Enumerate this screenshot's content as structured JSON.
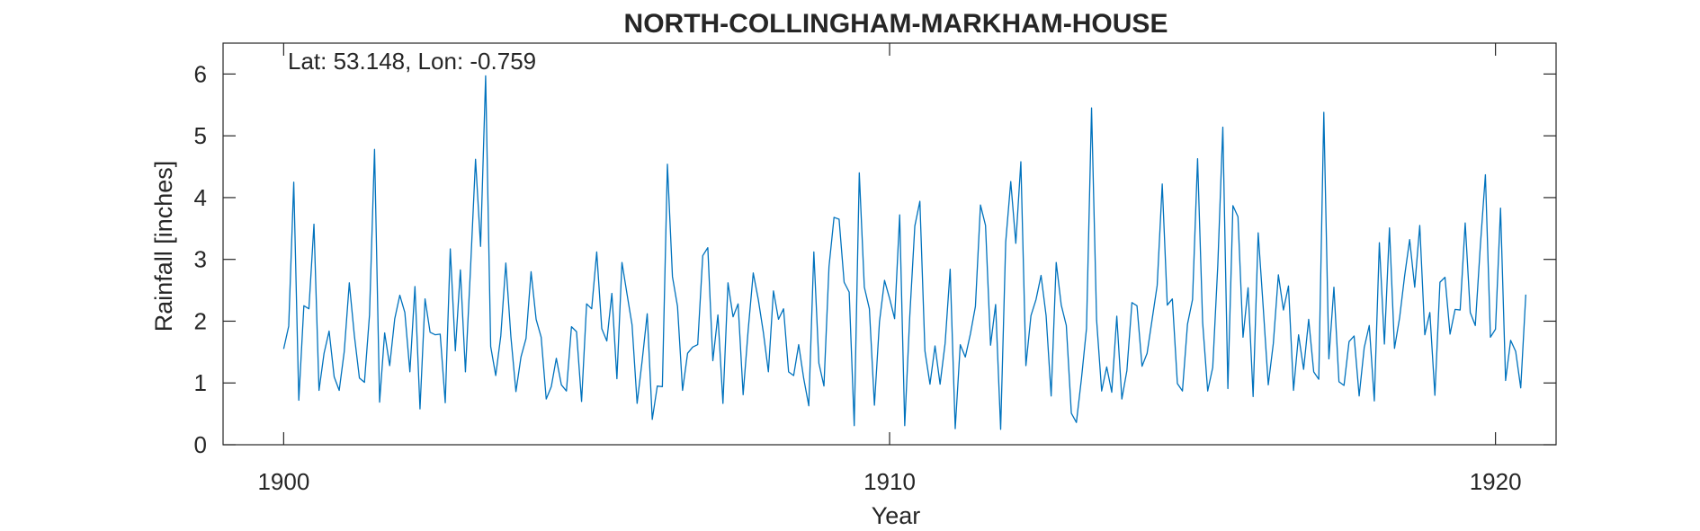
{
  "chart_data": {
    "type": "line",
    "title": "NORTH-COLLINGHAM-MARKHAM-HOUSE",
    "xlabel": "Year",
    "ylabel": "Rainfall [inches]",
    "annotation": "Lat: 53.148, Lon: -0.759",
    "xlim": [
      1899.0,
      1921.0
    ],
    "ylim": [
      0,
      6.5
    ],
    "xticks": [
      1900,
      1910,
      1920
    ],
    "yticks": [
      0,
      1,
      2,
      3,
      4,
      5,
      6
    ],
    "grid": false,
    "series": [
      {
        "color": "#0072BD",
        "start_year": 1900,
        "step_months": 1,
        "values": [
          1.55,
          1.92,
          4.25,
          0.72,
          2.25,
          2.2,
          3.57,
          0.88,
          1.48,
          1.84,
          1.1,
          0.88,
          1.51,
          2.62,
          1.77,
          1.08,
          1.01,
          2.1,
          4.78,
          0.69,
          1.81,
          1.28,
          2.04,
          2.42,
          2.14,
          1.18,
          2.56,
          0.58,
          2.36,
          1.82,
          1.78,
          1.79,
          0.68,
          3.17,
          1.52,
          2.83,
          1.18,
          2.84,
          4.62,
          3.21,
          5.97,
          1.59,
          1.12,
          1.76,
          2.94,
          1.75,
          0.86,
          1.42,
          1.72,
          2.8,
          2.03,
          1.74,
          0.74,
          0.94,
          1.4,
          0.97,
          0.87,
          1.91,
          1.83,
          0.7,
          2.28,
          2.2,
          3.12,
          1.88,
          1.68,
          2.45,
          1.07,
          2.95,
          2.44,
          1.94,
          0.67,
          1.36,
          2.12,
          0.41,
          0.95,
          0.94,
          4.54,
          2.72,
          2.24,
          0.88,
          1.48,
          1.58,
          1.62,
          3.06,
          3.19,
          1.36,
          2.1,
          0.67,
          2.62,
          2.07,
          2.28,
          0.81,
          1.86,
          2.78,
          2.35,
          1.82,
          1.18,
          2.49,
          2.03,
          2.2,
          1.18,
          1.12,
          1.62,
          1.07,
          0.63,
          3.12,
          1.32,
          0.95,
          2.88,
          3.68,
          3.65,
          2.63,
          2.47,
          0.31,
          4.4,
          2.55,
          2.2,
          0.64,
          1.99,
          2.66,
          2.37,
          2.04,
          3.72,
          0.31,
          2.08,
          3.54,
          3.94,
          1.52,
          0.98,
          1.6,
          0.98,
          1.64,
          2.84,
          0.26,
          1.62,
          1.42,
          1.79,
          2.24,
          3.88,
          3.55,
          1.61,
          2.27,
          0.25,
          3.28,
          4.26,
          3.26,
          4.58,
          1.28,
          2.09,
          2.35,
          2.74,
          2.09,
          0.79,
          2.95,
          2.26,
          1.93,
          0.51,
          0.36,
          1.07,
          1.88,
          5.45,
          2.02,
          0.87,
          1.26,
          0.85,
          2.08,
          0.74,
          1.2,
          2.3,
          2.25,
          1.27,
          1.48,
          2.03,
          2.58,
          4.22,
          2.26,
          2.36,
          0.99,
          0.87,
          1.95,
          2.35,
          4.63,
          1.98,
          0.87,
          1.25,
          2.9,
          5.14,
          0.91,
          3.87,
          3.69,
          1.74,
          2.54,
          0.78,
          3.43,
          2.22,
          0.97,
          1.64,
          2.75,
          2.18,
          2.57,
          0.88,
          1.78,
          1.22,
          2.03,
          1.18,
          1.06,
          5.38,
          1.39,
          2.55,
          1.02,
          0.96,
          1.67,
          1.76,
          0.79,
          1.57,
          1.93,
          0.71,
          3.27,
          1.63,
          3.51,
          1.56,
          2.05,
          2.73,
          3.32,
          2.55,
          3.55,
          1.78,
          2.14,
          0.8,
          2.63,
          2.71,
          1.79,
          2.19,
          2.18,
          3.59,
          2.14,
          1.93,
          3.22,
          4.37,
          1.74,
          1.87,
          3.83,
          1.04,
          1.69,
          1.51,
          0.92,
          2.43
        ]
      }
    ]
  }
}
